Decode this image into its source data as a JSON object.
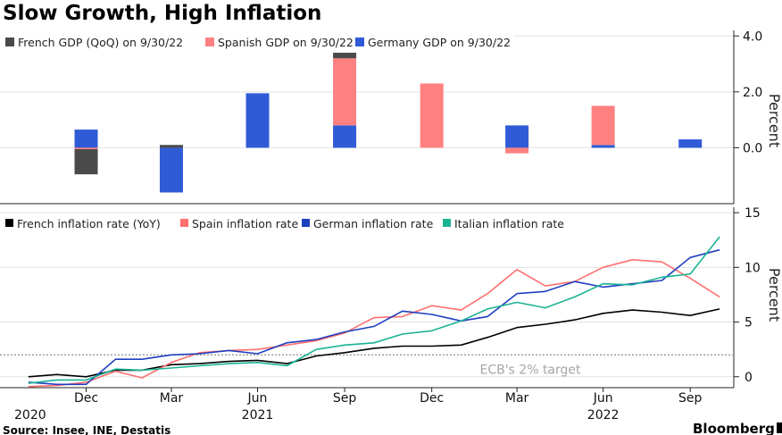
{
  "title": "Slow Growth, High Inflation",
  "source": "Source: Insee, INE, Destatis",
  "brand": "Bloomberg",
  "x_axis": {
    "tick_labels": [
      {
        "label": "Dec",
        "date": "2020-12-31"
      },
      {
        "label": "Mar",
        "date": "2021-03-31"
      },
      {
        "label": "Jun",
        "date": "2021-06-30"
      },
      {
        "label": "Sep",
        "date": "2021-09-30"
      },
      {
        "label": "Dec",
        "date": "2021-12-31"
      },
      {
        "label": "Mar",
        "date": "2022-03-31"
      },
      {
        "label": "Jun",
        "date": "2022-06-30"
      },
      {
        "label": "Sep",
        "date": "2022-09-30"
      }
    ],
    "year_labels": [
      {
        "label": "2020",
        "date": "2020-12-31"
      },
      {
        "label": "2021",
        "date": "2021-06-30"
      },
      {
        "label": "2022",
        "date": "2022-06-30"
      }
    ],
    "range": [
      "2020-10-01",
      "2022-11-15"
    ]
  },
  "chart_data": [
    {
      "type": "bar",
      "stacked": true,
      "ylabel": "Percent",
      "ylim": [
        -2.0,
        4.2
      ],
      "yticks": [
        {
          "value": 4,
          "label": "4.0"
        },
        {
          "value": 2,
          "label": "2.0"
        },
        {
          "value": 0,
          "label": "0.0"
        }
      ],
      "legend_position": "top-left",
      "grid": true,
      "categories": [
        "2020-12-31",
        "2021-03-31",
        "2021-06-30",
        "2021-09-30",
        "2021-12-31",
        "2022-03-31",
        "2022-06-30",
        "2022-09-30"
      ],
      "series": [
        {
          "name": "French GDP (QoQ) on 9/30/22",
          "color": "#4a4a4a",
          "values": [
            -0.9,
            0.1,
            0.0,
            0.2,
            0.0,
            0.0,
            0.0,
            0.0
          ]
        },
        {
          "name": "Spanish GDP on 9/30/22",
          "color": "#ff8080",
          "values": [
            -0.05,
            0.0,
            0.0,
            2.4,
            2.3,
            -0.2,
            1.4,
            0.0
          ]
        },
        {
          "name": "Germany GDP  on 9/30/22",
          "color": "#2f5bd6",
          "values": [
            0.65,
            -1.6,
            1.95,
            0.8,
            0.0,
            0.8,
            0.1,
            0.3
          ]
        }
      ]
    },
    {
      "type": "line",
      "ylabel": "Percent",
      "ylim": [
        -1.0,
        15.5
      ],
      "yticks": [
        {
          "value": 15,
          "label": "15"
        },
        {
          "value": 10,
          "label": "10"
        },
        {
          "value": 5,
          "label": "5"
        },
        {
          "value": 0,
          "label": "0"
        }
      ],
      "legend_position": "top-left",
      "grid": true,
      "reference_line": {
        "value": 2,
        "label": "ECB's 2% target"
      },
      "x": [
        "2020-10-31",
        "2020-11-30",
        "2020-12-31",
        "2021-01-31",
        "2021-02-28",
        "2021-03-31",
        "2021-04-30",
        "2021-05-31",
        "2021-06-30",
        "2021-07-31",
        "2021-08-31",
        "2021-09-30",
        "2021-10-31",
        "2021-11-30",
        "2021-12-31",
        "2022-01-31",
        "2022-02-28",
        "2022-03-31",
        "2022-04-30",
        "2022-05-31",
        "2022-06-30",
        "2022-07-31",
        "2022-08-31",
        "2022-09-30",
        "2022-10-31"
      ],
      "series": [
        {
          "name": "French inflation rate (YoY)",
          "color": "#000000",
          "values": [
            0.0,
            0.2,
            0.0,
            0.6,
            0.6,
            1.1,
            1.2,
            1.4,
            1.5,
            1.2,
            1.9,
            2.2,
            2.6,
            2.8,
            2.8,
            2.9,
            3.6,
            4.5,
            4.8,
            5.2,
            5.8,
            6.1,
            5.9,
            5.6,
            6.2
          ]
        },
        {
          "name": "Spain inflation rate",
          "color": "#ff6f6f",
          "values": [
            -0.9,
            -0.8,
            -0.5,
            0.5,
            -0.1,
            1.3,
            2.2,
            2.4,
            2.5,
            2.9,
            3.3,
            4.0,
            5.4,
            5.5,
            6.5,
            6.1,
            7.6,
            9.8,
            8.3,
            8.7,
            10.0,
            10.7,
            10.5,
            9.0,
            7.3
          ]
        },
        {
          "name": "German inflation rate",
          "color": "#1f3fbf",
          "values": [
            -0.5,
            -0.7,
            -0.7,
            1.6,
            1.6,
            2.0,
            2.1,
            2.4,
            2.1,
            3.1,
            3.4,
            4.1,
            4.6,
            6.0,
            5.7,
            5.1,
            5.5,
            7.6,
            7.8,
            8.7,
            8.2,
            8.5,
            8.8,
            10.9,
            11.6
          ]
        },
        {
          "name": "Italian inflation rate",
          "color": "#1ab394",
          "values": [
            -0.6,
            -0.3,
            -0.3,
            0.7,
            0.6,
            0.8,
            1.0,
            1.2,
            1.3,
            1.0,
            2.5,
            2.9,
            3.1,
            3.9,
            4.2,
            5.1,
            6.2,
            6.8,
            6.3,
            7.3,
            8.5,
            8.4,
            9.1,
            9.4,
            12.8
          ]
        }
      ]
    }
  ]
}
